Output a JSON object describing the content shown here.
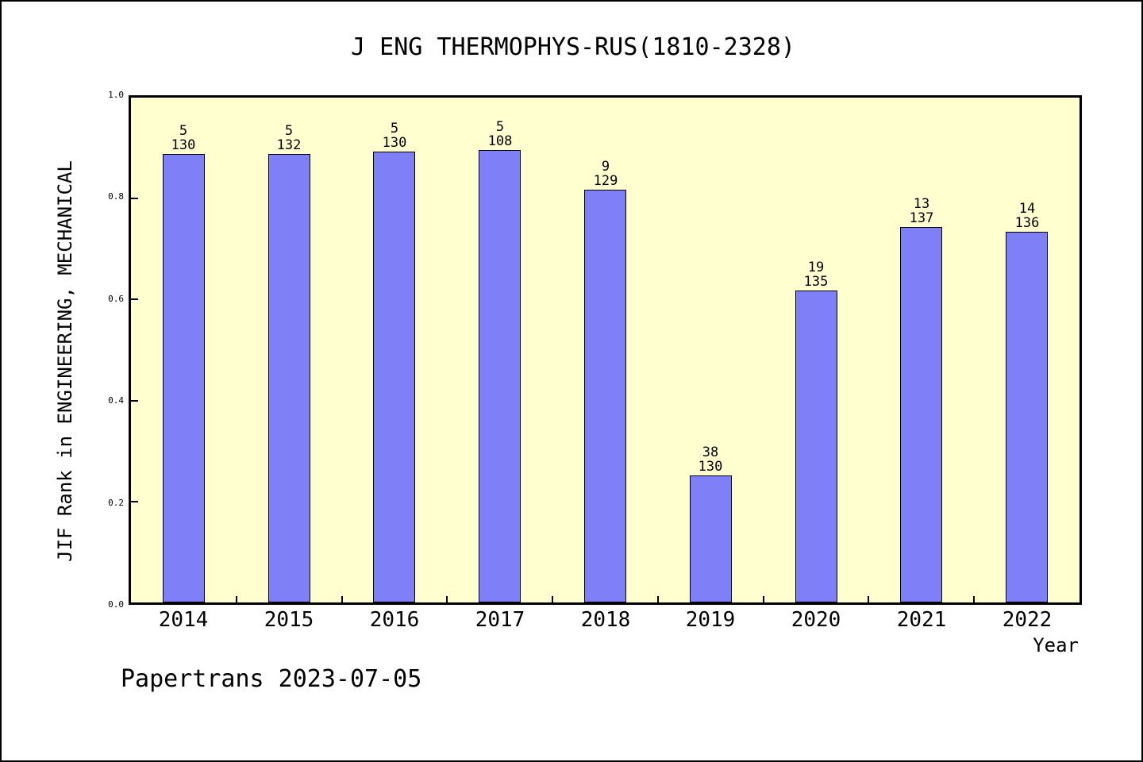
{
  "window": {
    "background": "#ffffff",
    "border_color": "#000000"
  },
  "chart_data": {
    "type": "bar",
    "title": "J ENG THERMOPHYS-RUS(1810-2328)",
    "xlabel": "Year",
    "ylabel": "JIF Rank in ENGINEERING, MECHANICAL",
    "categories": [
      "2014",
      "2015",
      "2016",
      "2017",
      "2018",
      "2019",
      "2020",
      "2021",
      "2022"
    ],
    "values": [
      0.889,
      0.889,
      0.893,
      0.897,
      0.818,
      0.252,
      0.618,
      0.743,
      0.734
    ],
    "bar_label_rank": [
      "5",
      "5",
      "5",
      "5",
      "9",
      "38",
      "19",
      "13",
      "14"
    ],
    "bar_label_total": [
      "130",
      "132",
      "130",
      "108",
      "129",
      "130",
      "135",
      "137",
      "136"
    ],
    "ylim": [
      0,
      1
    ],
    "yticks": [
      0.0,
      0.2,
      0.4,
      0.6,
      0.8,
      1.0
    ],
    "ytick_labels": [
      "0.0",
      "0.2",
      "0.4",
      "0.6",
      "0.8",
      "1.0"
    ],
    "grid": false,
    "legend": null,
    "bar_color": "#7f7ff8",
    "bar_border_color": "#000000",
    "plot_background": "#ffffd0"
  },
  "footer": {
    "watermark": "Papertrans 2023-07-05"
  }
}
